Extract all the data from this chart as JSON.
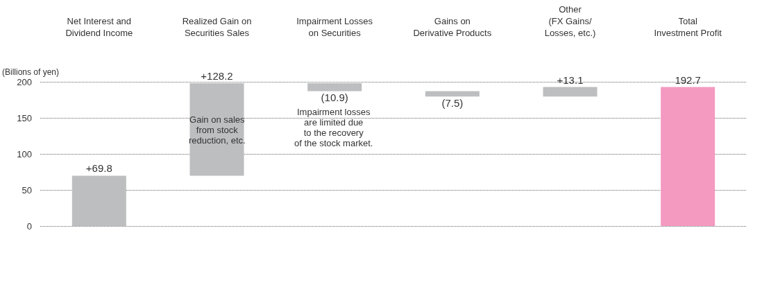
{
  "chart_data": {
    "type": "bar",
    "ylabel": "(Billions of yen)",
    "categories": [
      "Net Interest and\nDividend Income",
      "Realized Gain on\nSecurities Sales",
      "Impairment Losses\non Securities",
      "Gains on\nDerivative Products",
      "Other\n(FX Gains/\nLosses, etc.)",
      "Total\nInvestment Profit"
    ],
    "values": [
      69.8,
      128.2,
      -10.9,
      -7.5,
      13.1,
      192.7
    ],
    "base": [
      0,
      69.8,
      198,
      187.1,
      179.6,
      0
    ],
    "colors": [
      "#bcbec0",
      "#bcbec0",
      "#bcbec0",
      "#bcbec0",
      "#bcbec0",
      "#f49ac1"
    ],
    "value_labels": [
      "+69.8",
      "+128.2",
      "(10.9)",
      "(7.5)",
      "+13.1",
      "192.7"
    ],
    "ylim": [
      0,
      200
    ],
    "yticks": [
      0,
      50,
      100,
      150,
      200
    ],
    "grid": "y",
    "annotations": [
      "Gain on sales\nfrom stock\nreduction, etc.",
      "Impairment losses\nare limited due\nto the recovery\nof the stock market."
    ]
  }
}
